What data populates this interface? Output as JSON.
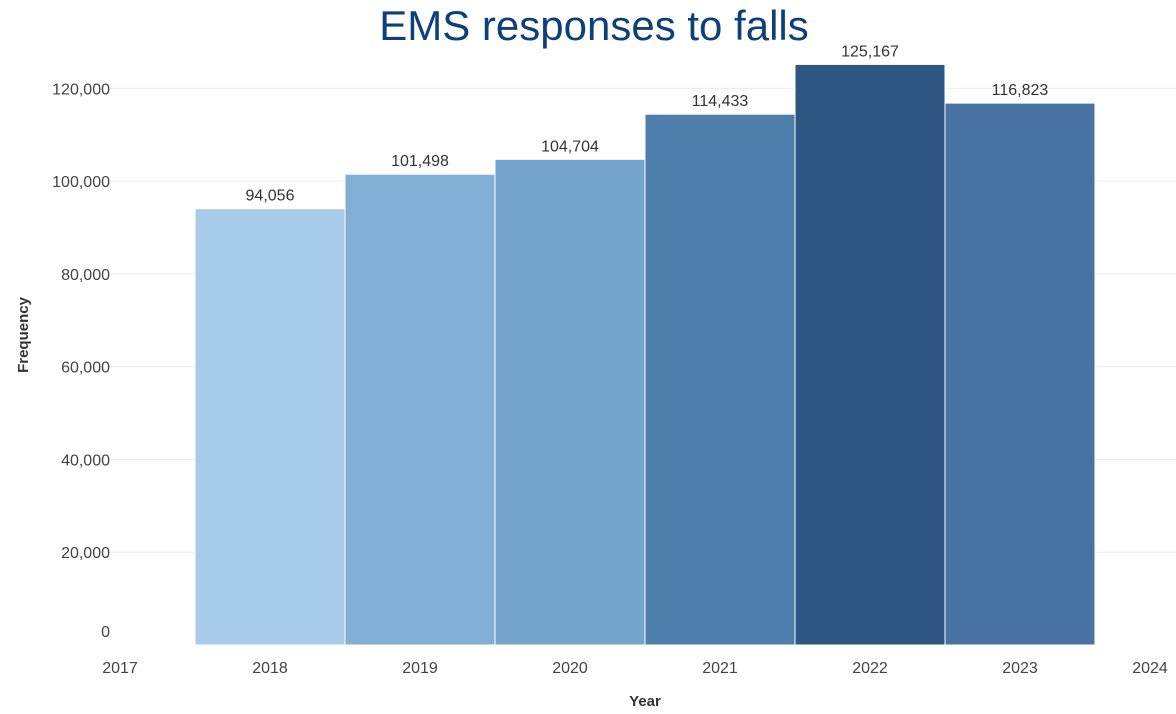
{
  "chart_data": {
    "type": "bar",
    "title": "EMS responses to falls",
    "xlabel": "Year",
    "ylabel": "Frequency",
    "categories": [
      "2018",
      "2019",
      "2020",
      "2021",
      "2022",
      "2023"
    ],
    "values": [
      94056,
      101498,
      104704,
      114433,
      125167,
      116823
    ],
    "value_labels": [
      "94,056",
      "101,498",
      "104,704",
      "114,433",
      "125,167",
      "116,823"
    ],
    "bar_colors": [
      "#a7cbe8",
      "#82afd5",
      "#74a4cb",
      "#4e7eac",
      "#2d5782",
      "#4873a3"
    ],
    "x_ticks": [
      "2017",
      "2018",
      "2019",
      "2020",
      "2021",
      "2022",
      "2023",
      "2024"
    ],
    "y_ticks": [
      0,
      20000,
      40000,
      60000,
      80000,
      100000,
      120000
    ],
    "y_tick_labels": [
      "0",
      "20,000",
      "40,000",
      "60,000",
      "80,000",
      "100,000",
      "120,000"
    ],
    "xlim": [
      2017,
      2024
    ],
    "ylim": [
      0,
      130000
    ],
    "grid": "horizontal",
    "legend": "none"
  }
}
